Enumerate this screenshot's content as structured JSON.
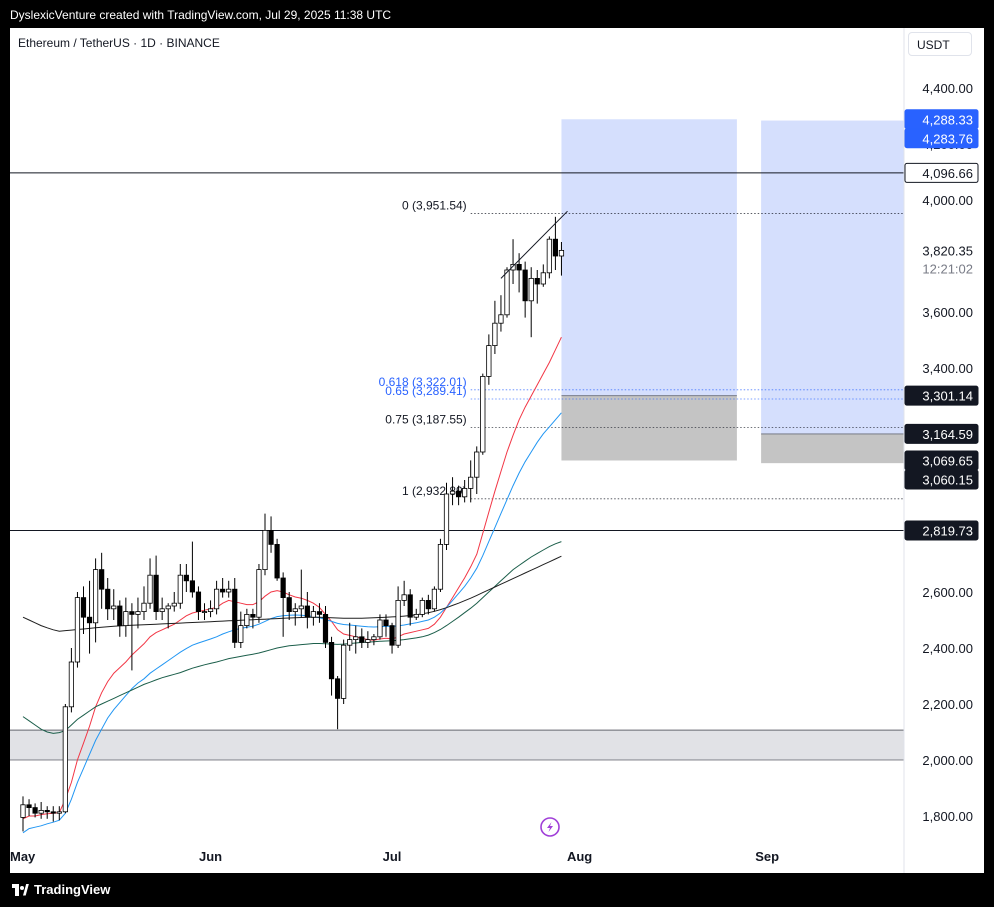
{
  "header": {
    "credit": "DyslexicVenture created with TradingView.com, Jul 29, 2025 11:38 UTC"
  },
  "chart": {
    "symbol": "Ethereum / TetherUS · 1D · BINANCE",
    "currency": "USDT"
  },
  "footer": {
    "brand": "TradingView"
  },
  "chart_data": {
    "type": "candlestick",
    "title": "Ethereum / TetherUS · 1D · BINANCE",
    "x_labels": [
      "May",
      "Jun",
      "Jul",
      "Aug",
      "Sep"
    ],
    "y_ticks": [
      4400,
      4200,
      4000,
      3600,
      3400,
      2600,
      2400,
      2200,
      2000,
      1800
    ],
    "y_tick_labels": [
      "4,400.00",
      "4,200.00",
      "4,000.00",
      "3,600.00",
      "3,400.00",
      "2,600.00",
      "2,400.00",
      "2,200.00",
      "2,000.00",
      "1,800.00"
    ],
    "ylim": [
      1700,
      4700
    ],
    "price_tags": [
      {
        "value": 4288.33,
        "label": "4,288.33",
        "style": "blue"
      },
      {
        "value": 4283.76,
        "label": "4,283.76",
        "style": "blue"
      },
      {
        "value": 4096.66,
        "label": "4,096.66",
        "style": "outline"
      },
      {
        "value": 3301.14,
        "label": "3,301.14",
        "style": "dark"
      },
      {
        "value": 3164.59,
        "label": "3,164.59",
        "style": "dark"
      },
      {
        "value": 3069.65,
        "label": "3,069.65",
        "style": "dark"
      },
      {
        "value": 3060.15,
        "label": "3,060.15",
        "style": "dark"
      },
      {
        "value": 2819.73,
        "label": "2,819.73",
        "style": "dark"
      }
    ],
    "last_price": {
      "value": 3820.35,
      "label": "3,820.35",
      "countdown": "12:21:02"
    },
    "fib_levels": [
      {
        "value": 3951.54,
        "label": "0 (3,951.54)",
        "color": "#131722"
      },
      {
        "value": 3322.01,
        "label": "0.618 (3,322.01)",
        "color": "#2962ff"
      },
      {
        "value": 3289.41,
        "label": "0.65 (3,289.41)",
        "color": "#2962ff"
      },
      {
        "value": 3187.55,
        "label": "0.75 (3,187.55)",
        "color": "#131722"
      },
      {
        "value": 2932.89,
        "label": "1 (2,932.89)",
        "color": "#131722"
      }
    ],
    "horizontal_lines": [
      4096.66,
      2819.73
    ],
    "support_zone": [
      2000,
      2107
    ],
    "position_boxes": [
      {
        "entry": 3301.14,
        "target": 4288.33,
        "stop": 3069.65,
        "x_from": "2025-07-29",
        "x_to": "2025-08-27"
      },
      {
        "entry": 3164.59,
        "target": 4283.76,
        "stop": 3060.15,
        "x_from": "2025-08-31",
        "x_to": "2025-09-29"
      }
    ],
    "candles": [
      {
        "date": "2025-05-01",
        "o": 1795,
        "h": 1870,
        "l": 1745,
        "c": 1840
      },
      {
        "date": "2025-05-02",
        "o": 1840,
        "h": 1860,
        "l": 1800,
        "c": 1830
      },
      {
        "date": "2025-05-03",
        "o": 1830,
        "h": 1845,
        "l": 1795,
        "c": 1810
      },
      {
        "date": "2025-05-04",
        "o": 1810,
        "h": 1850,
        "l": 1790,
        "c": 1820
      },
      {
        "date": "2025-05-05",
        "o": 1820,
        "h": 1835,
        "l": 1790,
        "c": 1815
      },
      {
        "date": "2025-05-06",
        "o": 1815,
        "h": 1835,
        "l": 1780,
        "c": 1810
      },
      {
        "date": "2025-05-07",
        "o": 1810,
        "h": 1835,
        "l": 1785,
        "c": 1815
      },
      {
        "date": "2025-05-08",
        "o": 1815,
        "h": 2200,
        "l": 1810,
        "c": 2190
      },
      {
        "date": "2025-05-09",
        "o": 2190,
        "h": 2400,
        "l": 2170,
        "c": 2350
      },
      {
        "date": "2025-05-10",
        "o": 2350,
        "h": 2600,
        "l": 2330,
        "c": 2580
      },
      {
        "date": "2025-05-11",
        "o": 2580,
        "h": 2620,
        "l": 2450,
        "c": 2510
      },
      {
        "date": "2025-05-12",
        "o": 2510,
        "h": 2640,
        "l": 2380,
        "c": 2490
      },
      {
        "date": "2025-05-13",
        "o": 2490,
        "h": 2720,
        "l": 2420,
        "c": 2680
      },
      {
        "date": "2025-05-14",
        "o": 2680,
        "h": 2740,
        "l": 2540,
        "c": 2610
      },
      {
        "date": "2025-05-15",
        "o": 2610,
        "h": 2650,
        "l": 2500,
        "c": 2540
      },
      {
        "date": "2025-05-16",
        "o": 2540,
        "h": 2610,
        "l": 2500,
        "c": 2550
      },
      {
        "date": "2025-05-17",
        "o": 2550,
        "h": 2570,
        "l": 2440,
        "c": 2480
      },
      {
        "date": "2025-05-18",
        "o": 2480,
        "h": 2580,
        "l": 2440,
        "c": 2530
      },
      {
        "date": "2025-05-19",
        "o": 2530,
        "h": 2560,
        "l": 2320,
        "c": 2520
      },
      {
        "date": "2025-05-20",
        "o": 2520,
        "h": 2580,
        "l": 2470,
        "c": 2530
      },
      {
        "date": "2025-05-21",
        "o": 2530,
        "h": 2620,
        "l": 2500,
        "c": 2560
      },
      {
        "date": "2025-05-22",
        "o": 2560,
        "h": 2720,
        "l": 2540,
        "c": 2660
      },
      {
        "date": "2025-05-23",
        "o": 2660,
        "h": 2730,
        "l": 2500,
        "c": 2530
      },
      {
        "date": "2025-05-24",
        "o": 2530,
        "h": 2580,
        "l": 2500,
        "c": 2540
      },
      {
        "date": "2025-05-25",
        "o": 2540,
        "h": 2560,
        "l": 2470,
        "c": 2550
      },
      {
        "date": "2025-05-26",
        "o": 2550,
        "h": 2600,
        "l": 2530,
        "c": 2560
      },
      {
        "date": "2025-05-27",
        "o": 2560,
        "h": 2700,
        "l": 2540,
        "c": 2660
      },
      {
        "date": "2025-05-28",
        "o": 2660,
        "h": 2700,
        "l": 2600,
        "c": 2640
      },
      {
        "date": "2025-05-29",
        "o": 2640,
        "h": 2780,
        "l": 2580,
        "c": 2600
      },
      {
        "date": "2025-05-30",
        "o": 2600,
        "h": 2620,
        "l": 2500,
        "c": 2530
      },
      {
        "date": "2025-05-31",
        "o": 2530,
        "h": 2560,
        "l": 2500,
        "c": 2530
      },
      {
        "date": "2025-06-01",
        "o": 2530,
        "h": 2570,
        "l": 2510,
        "c": 2540
      },
      {
        "date": "2025-06-02",
        "o": 2540,
        "h": 2640,
        "l": 2520,
        "c": 2610
      },
      {
        "date": "2025-06-03",
        "o": 2610,
        "h": 2650,
        "l": 2580,
        "c": 2600
      },
      {
        "date": "2025-06-04",
        "o": 2600,
        "h": 2640,
        "l": 2580,
        "c": 2610
      },
      {
        "date": "2025-06-05",
        "o": 2610,
        "h": 2650,
        "l": 2400,
        "c": 2420
      },
      {
        "date": "2025-06-06",
        "o": 2420,
        "h": 2530,
        "l": 2400,
        "c": 2480
      },
      {
        "date": "2025-06-07",
        "o": 2480,
        "h": 2540,
        "l": 2470,
        "c": 2520
      },
      {
        "date": "2025-06-08",
        "o": 2520,
        "h": 2540,
        "l": 2470,
        "c": 2510
      },
      {
        "date": "2025-06-09",
        "o": 2510,
        "h": 2700,
        "l": 2490,
        "c": 2680
      },
      {
        "date": "2025-06-10",
        "o": 2680,
        "h": 2880,
        "l": 2660,
        "c": 2820
      },
      {
        "date": "2025-06-11",
        "o": 2820,
        "h": 2870,
        "l": 2740,
        "c": 2770
      },
      {
        "date": "2025-06-12",
        "o": 2770,
        "h": 2790,
        "l": 2640,
        "c": 2650
      },
      {
        "date": "2025-06-13",
        "o": 2650,
        "h": 2670,
        "l": 2440,
        "c": 2580
      },
      {
        "date": "2025-06-14",
        "o": 2580,
        "h": 2600,
        "l": 2500,
        "c": 2530
      },
      {
        "date": "2025-06-15",
        "o": 2530,
        "h": 2560,
        "l": 2480,
        "c": 2540
      },
      {
        "date": "2025-06-16",
        "o": 2540,
        "h": 2680,
        "l": 2510,
        "c": 2550
      },
      {
        "date": "2025-06-17",
        "o": 2550,
        "h": 2600,
        "l": 2470,
        "c": 2510
      },
      {
        "date": "2025-06-18",
        "o": 2510,
        "h": 2550,
        "l": 2480,
        "c": 2530
      },
      {
        "date": "2025-06-19",
        "o": 2530,
        "h": 2560,
        "l": 2490,
        "c": 2520
      },
      {
        "date": "2025-06-20",
        "o": 2520,
        "h": 2550,
        "l": 2400,
        "c": 2420
      },
      {
        "date": "2025-06-21",
        "o": 2420,
        "h": 2440,
        "l": 2230,
        "c": 2290
      },
      {
        "date": "2025-06-22",
        "o": 2290,
        "h": 2300,
        "l": 2110,
        "c": 2220
      },
      {
        "date": "2025-06-23",
        "o": 2220,
        "h": 2430,
        "l": 2200,
        "c": 2410
      },
      {
        "date": "2025-06-24",
        "o": 2410,
        "h": 2490,
        "l": 2390,
        "c": 2430
      },
      {
        "date": "2025-06-25",
        "o": 2430,
        "h": 2480,
        "l": 2380,
        "c": 2440
      },
      {
        "date": "2025-06-26",
        "o": 2440,
        "h": 2470,
        "l": 2400,
        "c": 2420
      },
      {
        "date": "2025-06-27",
        "o": 2420,
        "h": 2460,
        "l": 2400,
        "c": 2430
      },
      {
        "date": "2025-06-28",
        "o": 2430,
        "h": 2450,
        "l": 2410,
        "c": 2440
      },
      {
        "date": "2025-06-29",
        "o": 2440,
        "h": 2520,
        "l": 2430,
        "c": 2500
      },
      {
        "date": "2025-06-30",
        "o": 2500,
        "h": 2520,
        "l": 2440,
        "c": 2480
      },
      {
        "date": "2025-07-01",
        "o": 2480,
        "h": 2490,
        "l": 2380,
        "c": 2410
      },
      {
        "date": "2025-07-02",
        "o": 2410,
        "h": 2620,
        "l": 2400,
        "c": 2570
      },
      {
        "date": "2025-07-03",
        "o": 2570,
        "h": 2640,
        "l": 2550,
        "c": 2590
      },
      {
        "date": "2025-07-04",
        "o": 2590,
        "h": 2610,
        "l": 2480,
        "c": 2510
      },
      {
        "date": "2025-07-05",
        "o": 2510,
        "h": 2540,
        "l": 2500,
        "c": 2520
      },
      {
        "date": "2025-07-06",
        "o": 2520,
        "h": 2580,
        "l": 2510,
        "c": 2570
      },
      {
        "date": "2025-07-07",
        "o": 2570,
        "h": 2590,
        "l": 2520,
        "c": 2540
      },
      {
        "date": "2025-07-08",
        "o": 2540,
        "h": 2620,
        "l": 2530,
        "c": 2610
      },
      {
        "date": "2025-07-09",
        "o": 2610,
        "h": 2790,
        "l": 2600,
        "c": 2770
      },
      {
        "date": "2025-07-10",
        "o": 2770,
        "h": 2990,
        "l": 2750,
        "c": 2950
      },
      {
        "date": "2025-07-11",
        "o": 2950,
        "h": 3010,
        "l": 2910,
        "c": 2960
      },
      {
        "date": "2025-07-12",
        "o": 2960,
        "h": 2980,
        "l": 2910,
        "c": 2940
      },
      {
        "date": "2025-07-13",
        "o": 2940,
        "h": 3000,
        "l": 2920,
        "c": 2970
      },
      {
        "date": "2025-07-14",
        "o": 2970,
        "h": 3070,
        "l": 2920,
        "c": 3010
      },
      {
        "date": "2025-07-15",
        "o": 3010,
        "h": 3120,
        "l": 2950,
        "c": 3100
      },
      {
        "date": "2025-07-16",
        "o": 3100,
        "h": 3380,
        "l": 3090,
        "c": 3370
      },
      {
        "date": "2025-07-17",
        "o": 3370,
        "h": 3520,
        "l": 3340,
        "c": 3480
      },
      {
        "date": "2025-07-18",
        "o": 3480,
        "h": 3640,
        "l": 3450,
        "c": 3560
      },
      {
        "date": "2025-07-19",
        "o": 3560,
        "h": 3660,
        "l": 3530,
        "c": 3590
      },
      {
        "date": "2025-07-20",
        "o": 3590,
        "h": 3760,
        "l": 3580,
        "c": 3750
      },
      {
        "date": "2025-07-21",
        "o": 3750,
        "h": 3860,
        "l": 3700,
        "c": 3770
      },
      {
        "date": "2025-07-22",
        "o": 3770,
        "h": 3810,
        "l": 3670,
        "c": 3750
      },
      {
        "date": "2025-07-23",
        "o": 3750,
        "h": 3780,
        "l": 3580,
        "c": 3640
      },
      {
        "date": "2025-07-24",
        "o": 3640,
        "h": 3760,
        "l": 3510,
        "c": 3720
      },
      {
        "date": "2025-07-25",
        "o": 3720,
        "h": 3750,
        "l": 3630,
        "c": 3700
      },
      {
        "date": "2025-07-26",
        "o": 3700,
        "h": 3770,
        "l": 3690,
        "c": 3740
      },
      {
        "date": "2025-07-27",
        "o": 3740,
        "h": 3870,
        "l": 3720,
        "c": 3860
      },
      {
        "date": "2025-07-28",
        "o": 3860,
        "h": 3940,
        "l": 3750,
        "c": 3800
      },
      {
        "date": "2025-07-29",
        "o": 3800,
        "h": 3850,
        "l": 3730,
        "c": 3820
      }
    ],
    "moving_averages": [
      {
        "color": "#f23645",
        "values": [
          1790,
          1800,
          1800,
          1805,
          1808,
          1810,
          1812,
          1860,
          1920,
          2000,
          2060,
          2120,
          2190,
          2240,
          2280,
          2310,
          2330,
          2350,
          2375,
          2395,
          2415,
          2440,
          2455,
          2465,
          2475,
          2485,
          2500,
          2515,
          2525,
          2530,
          2535,
          2540,
          2545,
          2560,
          2570,
          2565,
          2560,
          2555,
          2555,
          2565,
          2585,
          2600,
          2605,
          2600,
          2590,
          2582,
          2578,
          2570,
          2560,
          2545,
          2520,
          2495,
          2465,
          2450,
          2445,
          2440,
          2435,
          2430,
          2428,
          2432,
          2435,
          2432,
          2440,
          2450,
          2455,
          2460,
          2465,
          2470,
          2485,
          2510,
          2545,
          2580,
          2615,
          2650,
          2690,
          2735,
          2810,
          2885,
          2960,
          3030,
          3100,
          3160,
          3215,
          3260,
          3300,
          3340,
          3380,
          3420,
          3465,
          3510
        ]
      },
      {
        "color": "#2196f3",
        "values": [
          1740,
          1755,
          1760,
          1765,
          1772,
          1778,
          1785,
          1810,
          1860,
          1920,
          1970,
          2020,
          2070,
          2110,
          2150,
          2180,
          2205,
          2230,
          2255,
          2275,
          2290,
          2310,
          2325,
          2340,
          2355,
          2370,
          2385,
          2398,
          2410,
          2418,
          2425,
          2432,
          2440,
          2450,
          2458,
          2465,
          2470,
          2474,
          2478,
          2485,
          2495,
          2505,
          2512,
          2515,
          2517,
          2518,
          2517,
          2515,
          2512,
          2508,
          2502,
          2495,
          2488,
          2484,
          2482,
          2480,
          2478,
          2476,
          2475,
          2476,
          2477,
          2477,
          2479,
          2482,
          2486,
          2490,
          2495,
          2500,
          2510,
          2525,
          2545,
          2570,
          2595,
          2620,
          2650,
          2685,
          2730,
          2780,
          2830,
          2880,
          2930,
          2980,
          3025,
          3065,
          3100,
          3135,
          3165,
          3190,
          3215,
          3240
        ]
      },
      {
        "color": "#1b5e4a",
        "values": [
          2155,
          2140,
          2125,
          2110,
          2100,
          2095,
          2098,
          2105,
          2125,
          2145,
          2160,
          2175,
          2190,
          2200,
          2210,
          2220,
          2230,
          2240,
          2250,
          2260,
          2270,
          2278,
          2286,
          2294,
          2300,
          2306,
          2312,
          2320,
          2328,
          2334,
          2340,
          2345,
          2350,
          2356,
          2362,
          2366,
          2370,
          2374,
          2378,
          2382,
          2388,
          2394,
          2400,
          2404,
          2408,
          2410,
          2412,
          2414,
          2416,
          2416,
          2415,
          2414,
          2413,
          2414,
          2416,
          2418,
          2420,
          2421,
          2422,
          2424,
          2425,
          2426,
          2428,
          2430,
          2433,
          2436,
          2440,
          2446,
          2455,
          2466,
          2480,
          2495,
          2510,
          2526,
          2542,
          2560,
          2580,
          2600,
          2620,
          2640,
          2660,
          2680,
          2695,
          2710,
          2725,
          2738,
          2750,
          2762,
          2772,
          2780
        ]
      },
      {
        "color": "#1f1f1f",
        "values": [
          2510,
          2500,
          2490,
          2480,
          2472,
          2465,
          2460,
          2462,
          2464,
          2466,
          2468,
          2470,
          2472,
          2474,
          2476,
          2478,
          2479,
          2480,
          2481,
          2482,
          2483,
          2484,
          2485,
          2486,
          2487,
          2488,
          2489,
          2490,
          2491,
          2492,
          2493,
          2494,
          2495,
          2496,
          2497,
          2498,
          2499,
          2500,
          2501,
          2502,
          2503,
          2504,
          2505,
          2506,
          2507,
          2508,
          2509,
          2510,
          2510,
          2510,
          2509,
          2508,
          2507,
          2506,
          2506,
          2506,
          2506,
          2507,
          2508,
          2509,
          2510,
          2511,
          2512,
          2514,
          2516,
          2519,
          2522,
          2526,
          2531,
          2537,
          2544,
          2552,
          2560,
          2569,
          2578,
          2588,
          2598,
          2608,
          2618,
          2628,
          2638,
          2648,
          2658,
          2668,
          2678,
          2688,
          2698,
          2708,
          2718,
          2728
        ]
      }
    ],
    "trendline": [
      {
        "date": "2025-07-19",
        "value": 3720
      },
      {
        "date": "2025-07-30",
        "value": 3960
      }
    ]
  }
}
